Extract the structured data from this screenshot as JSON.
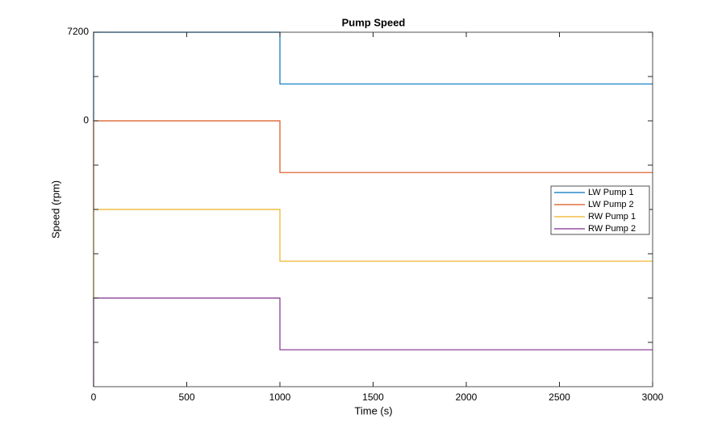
{
  "chart_data": {
    "type": "line",
    "title": "Pump Speed",
    "x_label": "Time (s)",
    "y_label": "Speed (rpm)",
    "x": [
      0,
      0,
      1000,
      1000,
      3000
    ],
    "series": [
      {
        "name": "LW Pump 1",
        "color": "#0072bd",
        "values": [
          0,
          7200,
          7200,
          3000,
          3000
        ]
      },
      {
        "name": "LW Pump 2",
        "color": "#d95319",
        "values": [
          -7200,
          0,
          0,
          -4200,
          -4200
        ]
      },
      {
        "name": "RW Pump 1",
        "color": "#edb120",
        "values": [
          -14400,
          -7200,
          -7200,
          -11400,
          -11400
        ]
      },
      {
        "name": "RW Pump 2",
        "color": "#7e2f8e",
        "values": [
          -21600,
          -14400,
          -14400,
          -18600,
          -18600
        ]
      }
    ],
    "xlim": [
      0,
      3000
    ],
    "xticks": [
      0,
      500,
      1000,
      1500,
      2000,
      2500,
      3000
    ],
    "ylim": [
      -21600,
      7200
    ],
    "yticks": [
      7200,
      {
        "value": 3600,
        "label": null
      },
      0,
      {
        "value": -3600,
        "label": null
      },
      {
        "value": -7200,
        "label": null
      },
      {
        "value": -10800,
        "label": null
      },
      {
        "value": -14400,
        "label": null
      },
      {
        "value": -18000,
        "label": null
      }
    ],
    "legend": "right"
  }
}
